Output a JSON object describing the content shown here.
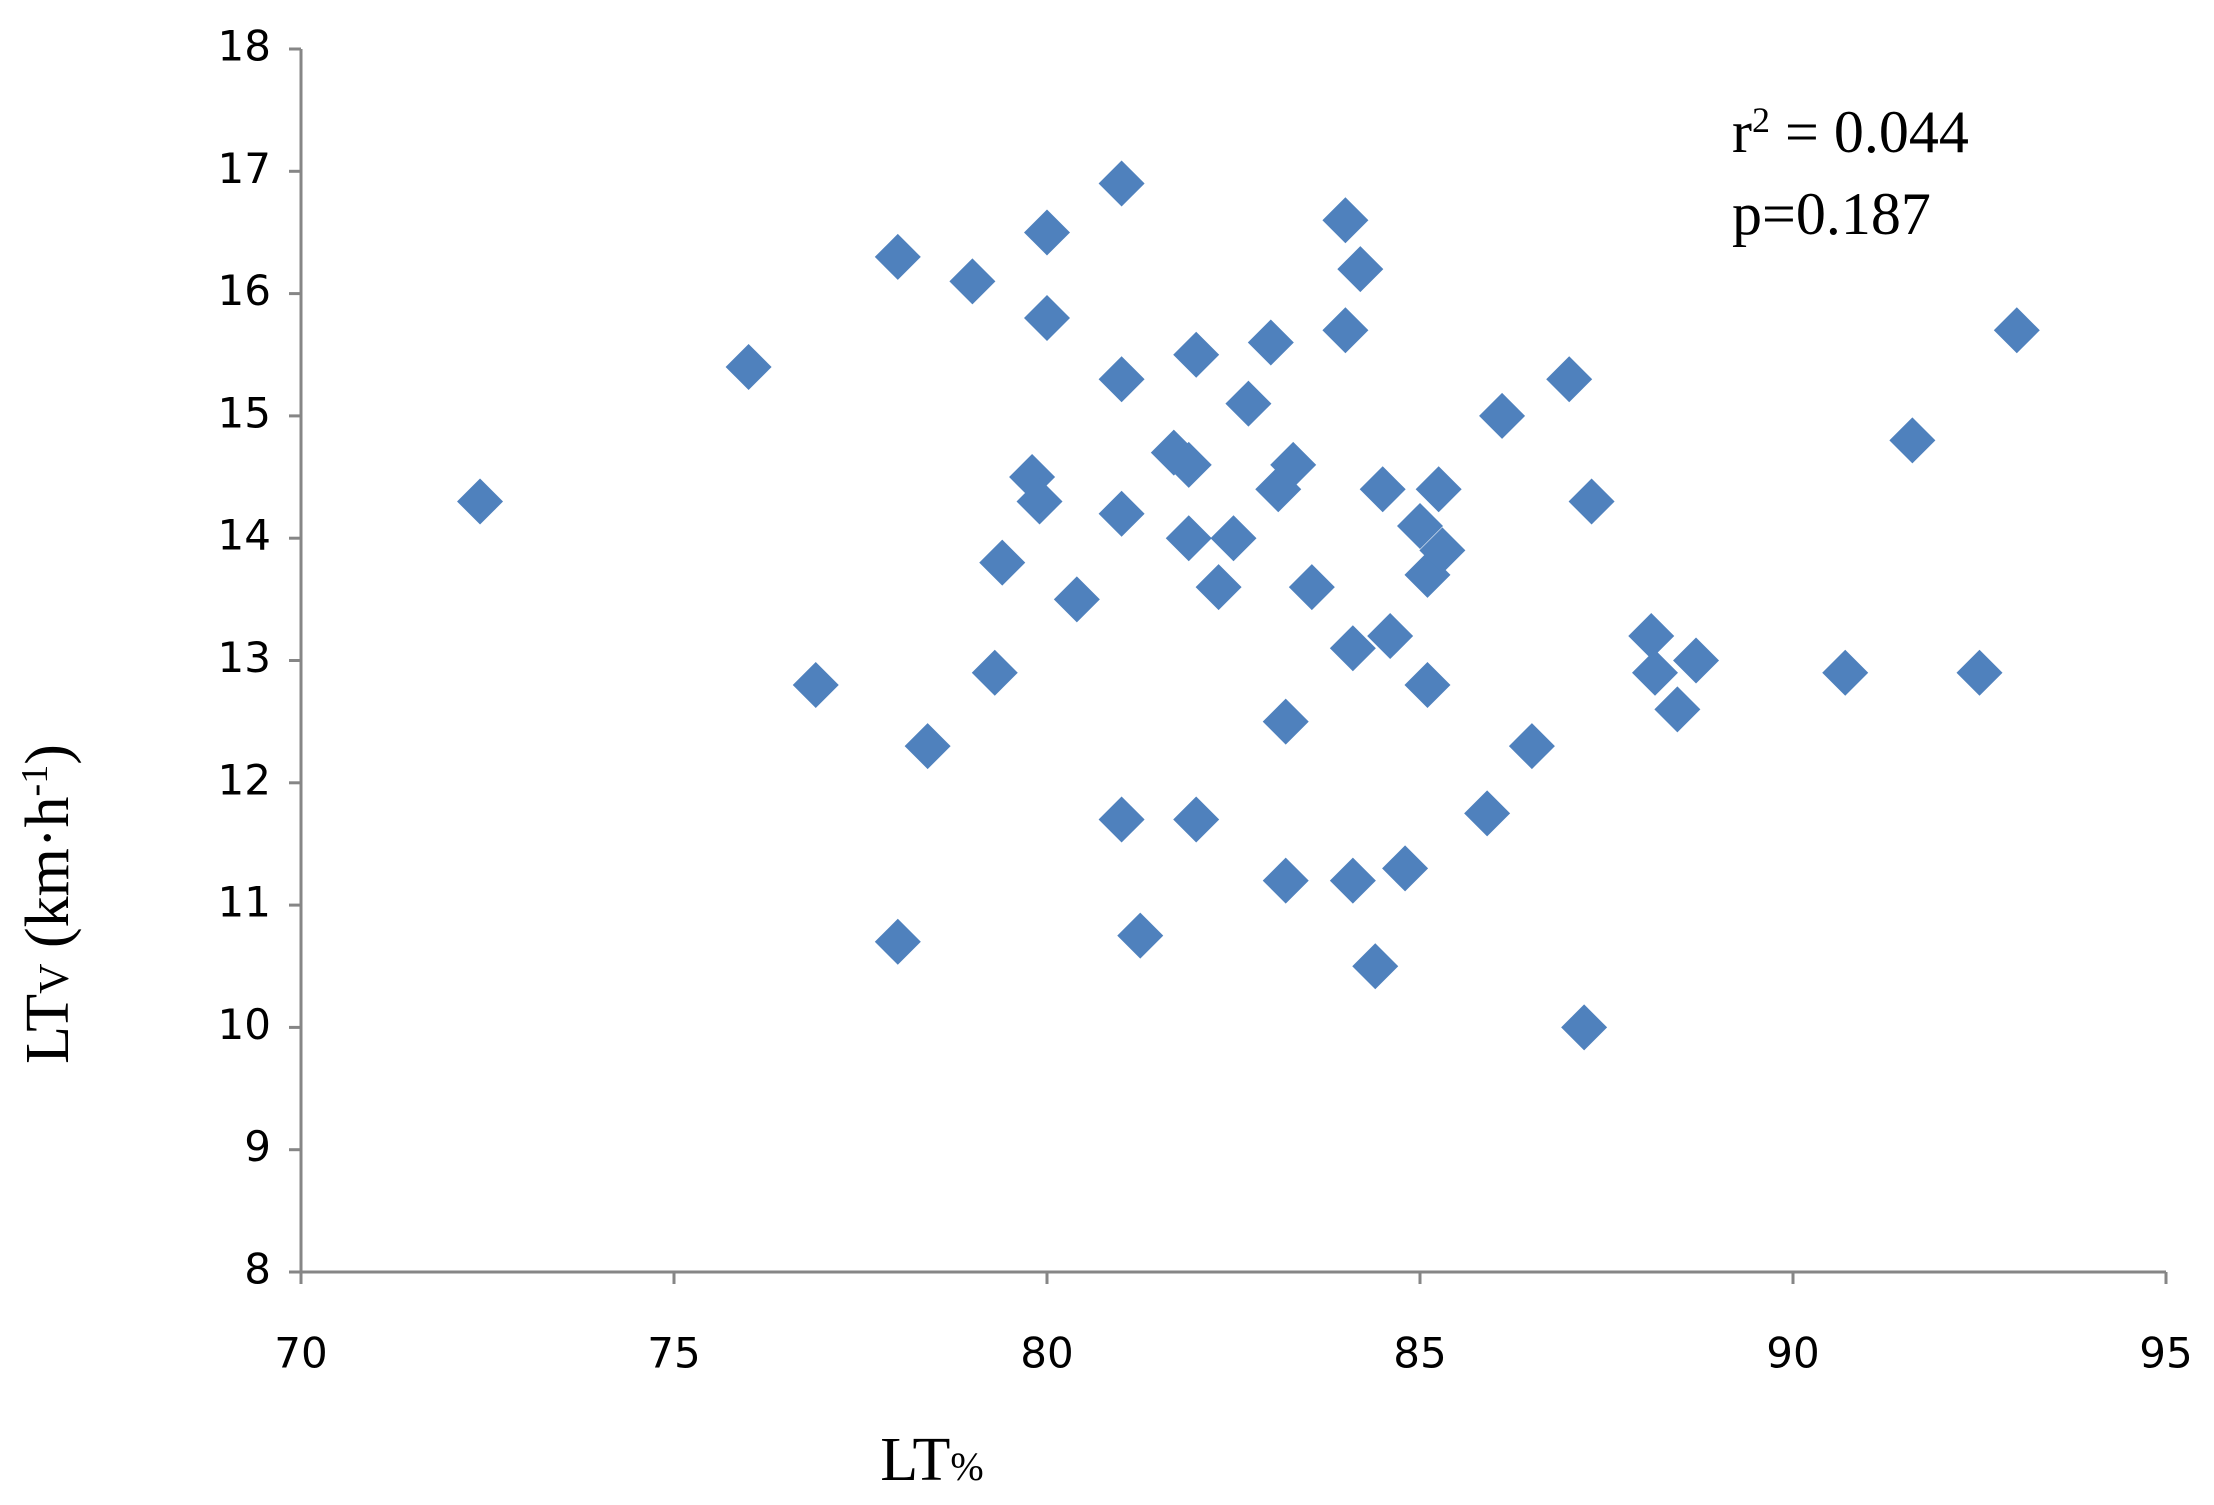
{
  "chart_data": {
    "type": "scatter",
    "x_label": [
      "LT",
      "%"
    ],
    "y_label": [
      "LT",
      "V",
      " (km·h",
      "-1",
      ")"
    ],
    "annotations": [
      [
        "r",
        "2",
        " = 0.044"
      ],
      [
        "p=0.187"
      ]
    ],
    "xlim": [
      70,
      95
    ],
    "xticks": [
      70,
      75,
      80,
      85,
      90,
      95
    ],
    "ylim": [
      8,
      18
    ],
    "yticks": [
      8,
      9,
      10,
      11,
      12,
      13,
      14,
      15,
      16,
      17,
      18
    ],
    "grid": false,
    "series": [
      {
        "color": "#4f81bd",
        "x": [
          72.4,
          76.0,
          76.9,
          78.0,
          78.0,
          78.4,
          79.0,
          79.3,
          79.4,
          79.8,
          79.9,
          80.0,
          80.0,
          80.4,
          81.0,
          81.0,
          81.0,
          81.0,
          81.25,
          81.7,
          81.9,
          81.9,
          82.0,
          82.0,
          82.3,
          82.5,
          82.7,
          83.0,
          83.1,
          83.3,
          83.2,
          83.2,
          83.55,
          84.0,
          84.0,
          84.2,
          84.1,
          84.1,
          84.4,
          84.5,
          84.6,
          84.8,
          85.0,
          85.1,
          85.3,
          85.1,
          85.25,
          85.9,
          86.1,
          86.5,
          87.0,
          87.2,
          87.3,
          88.1,
          88.15,
          88.45,
          88.7,
          90.7,
          91.6,
          92.5,
          93.0
        ],
        "y": [
          14.3,
          15.4,
          12.8,
          16.3,
          10.7,
          12.3,
          16.1,
          12.9,
          13.8,
          14.5,
          14.3,
          16.5,
          15.8,
          13.5,
          16.9,
          15.3,
          14.2,
          11.7,
          10.75,
          14.7,
          14.6,
          14.0,
          15.5,
          11.7,
          13.6,
          14.0,
          15.1,
          15.6,
          14.4,
          14.6,
          12.5,
          11.2,
          13.6,
          16.6,
          15.7,
          16.2,
          13.1,
          11.2,
          10.5,
          14.4,
          13.2,
          11.3,
          14.1,
          13.7,
          13.9,
          12.8,
          14.4,
          11.75,
          15.0,
          12.3,
          15.3,
          10.0,
          14.3,
          13.2,
          12.9,
          12.6,
          13.0,
          12.9,
          14.8,
          12.9,
          15.7
        ]
      }
    ]
  }
}
